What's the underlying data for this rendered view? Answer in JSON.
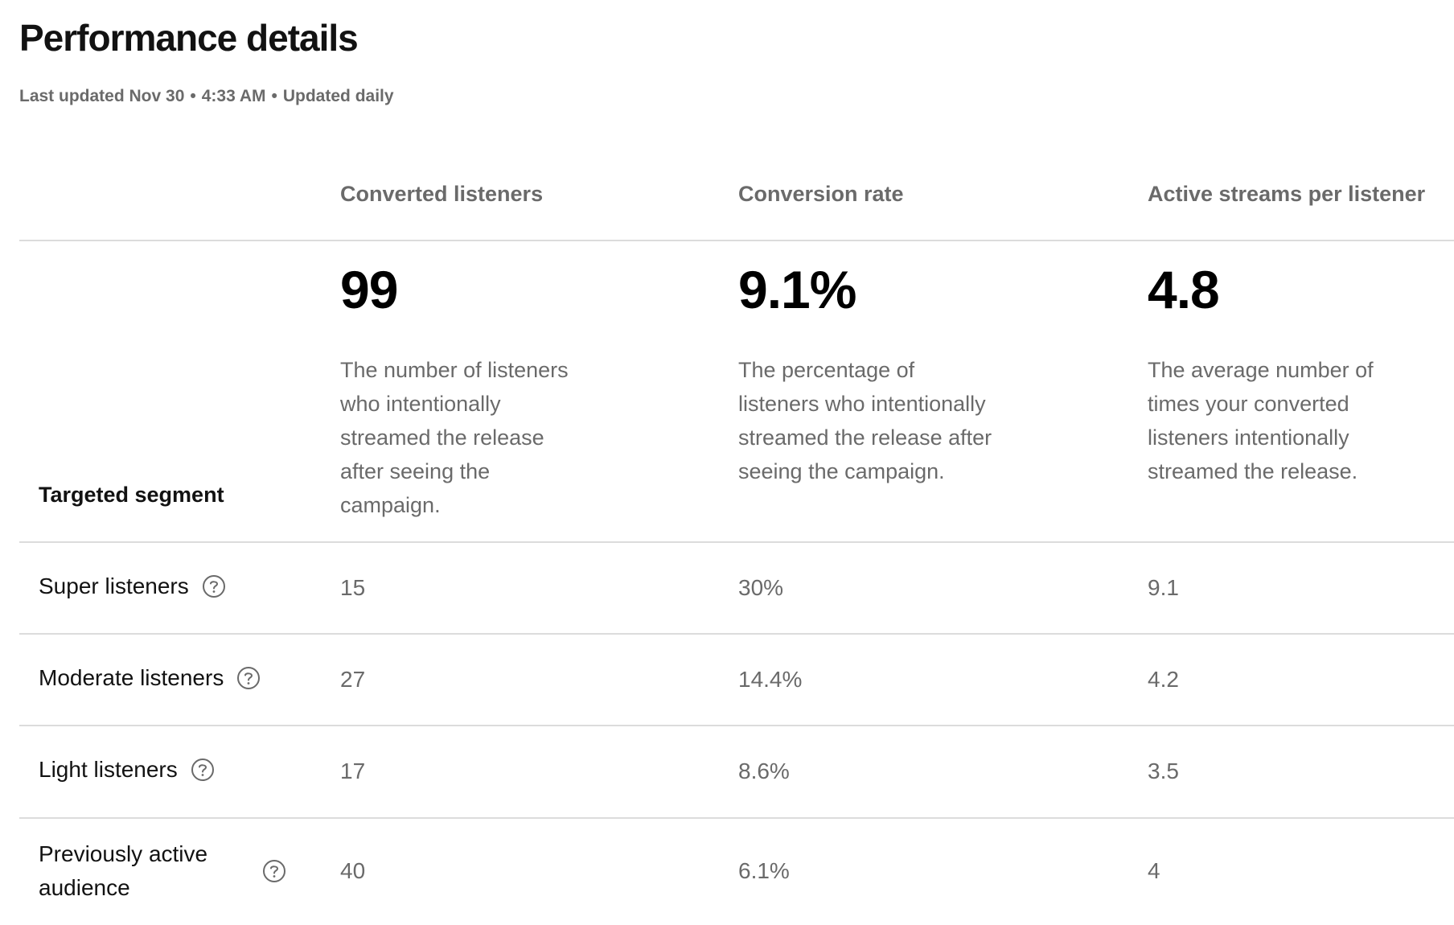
{
  "header": {
    "title": "Performance details",
    "last_updated": "Last updated Nov 30",
    "time": "4:33 AM",
    "frequency": "Updated daily",
    "separator": "•"
  },
  "columns": [
    {
      "label": "Converted listeners",
      "value": "99",
      "description": "The number of listeners who intentionally streamed the release after seeing the campaign."
    },
    {
      "label": "Conversion rate",
      "value": "9.1%",
      "description": "The percentage of listeners who intentionally streamed the release after seeing the campaign."
    },
    {
      "label": "Active streams per listener",
      "value": "4.8",
      "description": "The average number of times your converted listeners intentionally streamed the release."
    }
  ],
  "table": {
    "segment_header": "Targeted segment",
    "rows": [
      {
        "segment": "Super listeners",
        "converted": "15",
        "rate": "30%",
        "streams": "9.1"
      },
      {
        "segment": "Moderate listeners",
        "converted": "27",
        "rate": "14.4%",
        "streams": "4.2"
      },
      {
        "segment": "Light listeners",
        "converted": "17",
        "rate": "8.6%",
        "streams": "3.5"
      },
      {
        "segment": "Previously active audience",
        "converted": "40",
        "rate": "6.1%",
        "streams": "4"
      }
    ]
  },
  "icons": {
    "help": "question-circle-icon"
  },
  "colors": {
    "text_primary": "#121212",
    "text_secondary": "#6a6a6a",
    "divider": "#dcdcdc"
  }
}
